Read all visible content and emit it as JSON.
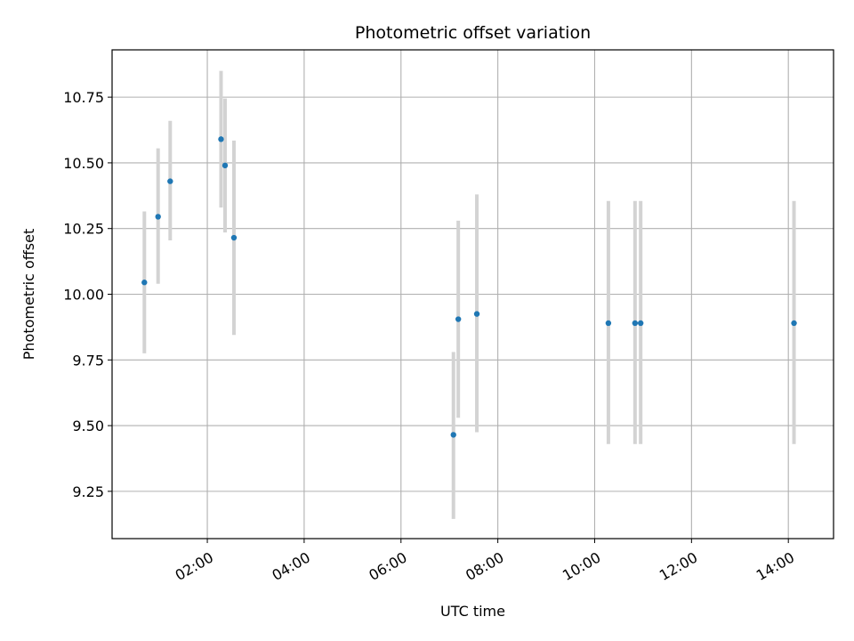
{
  "chart_data": {
    "type": "scatter",
    "title": "Photometric offset variation",
    "xlabel": "UTC time",
    "ylabel": "Photometric offset",
    "x_unit": "UTC time (HH:MM)",
    "xlim": [
      "00:02",
      "14:56"
    ],
    "ylim": [
      9.07,
      10.93
    ],
    "xticks": [
      "02:00",
      "04:00",
      "06:00",
      "08:00",
      "10:00",
      "12:00",
      "14:00"
    ],
    "yticks": [
      "9.25",
      "9.50",
      "9.75",
      "10.00",
      "10.25",
      "10.50",
      "10.75"
    ],
    "grid": true,
    "colors": {
      "marker": "#1f77b4",
      "errorbar": "#d3d3d3",
      "grid": "#b0b0b0"
    },
    "points": [
      {
        "x": "00:42",
        "y": 10.045,
        "ylow": 9.775,
        "yhigh": 10.315
      },
      {
        "x": "00:59",
        "y": 10.295,
        "ylow": 10.04,
        "yhigh": 10.555
      },
      {
        "x": "01:14",
        "y": 10.43,
        "ylow": 10.205,
        "yhigh": 10.66
      },
      {
        "x": "02:17",
        "y": 10.59,
        "ylow": 10.33,
        "yhigh": 10.85
      },
      {
        "x": "02:22",
        "y": 10.49,
        "ylow": 10.235,
        "yhigh": 10.745
      },
      {
        "x": "02:33",
        "y": 10.215,
        "ylow": 9.845,
        "yhigh": 10.585
      },
      {
        "x": "07:05",
        "y": 9.465,
        "ylow": 9.145,
        "yhigh": 9.78
      },
      {
        "x": "07:11",
        "y": 9.905,
        "ylow": 9.53,
        "yhigh": 10.28
      },
      {
        "x": "07:34",
        "y": 9.925,
        "ylow": 9.475,
        "yhigh": 10.38
      },
      {
        "x": "10:17",
        "y": 9.89,
        "ylow": 9.43,
        "yhigh": 10.355
      },
      {
        "x": "10:50",
        "y": 9.89,
        "ylow": 9.43,
        "yhigh": 10.355
      },
      {
        "x": "10:57",
        "y": 9.89,
        "ylow": 9.43,
        "yhigh": 10.355
      },
      {
        "x": "14:07",
        "y": 9.89,
        "ylow": 9.43,
        "yhigh": 10.355
      }
    ]
  }
}
